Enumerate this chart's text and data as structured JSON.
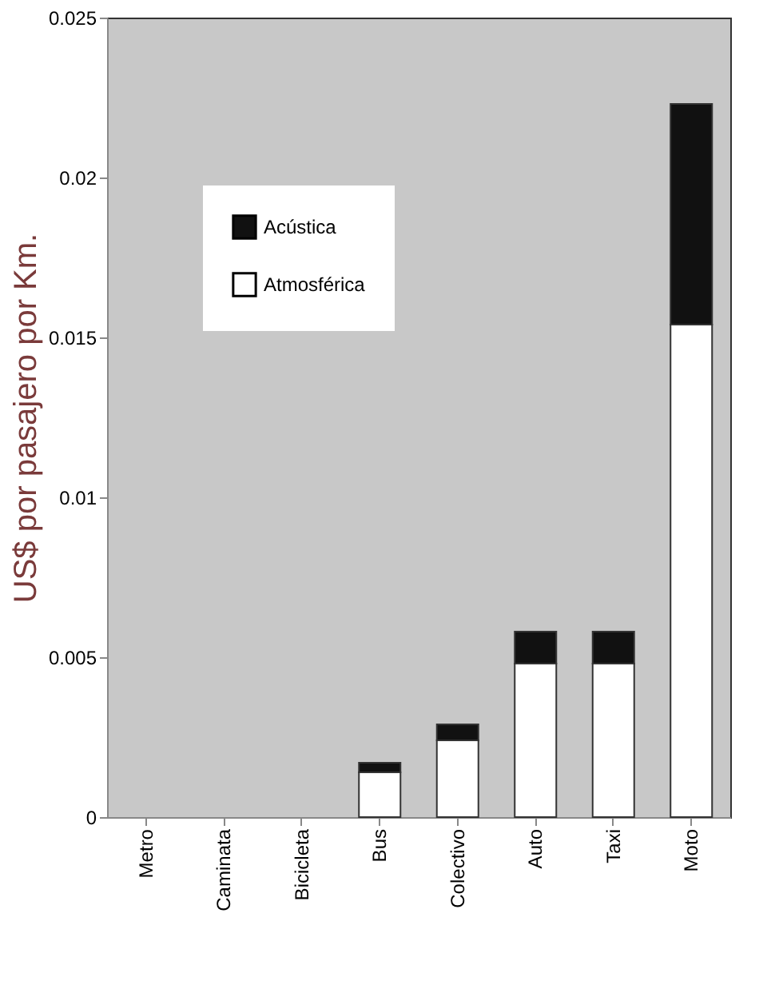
{
  "chart_data": {
    "type": "bar",
    "stacked": true,
    "ylabel": "US$ por pasajero por Km.",
    "categories": [
      "Metro",
      "Caminata",
      "Bicicleta",
      "Bus",
      "Colectivo",
      "Auto",
      "Taxi",
      "Moto"
    ],
    "series": [
      {
        "name": "Atmosférica",
        "color": "#ffffff",
        "values": [
          0,
          0,
          0,
          0.0014,
          0.0024,
          0.0048,
          0.0048,
          0.0154
        ]
      },
      {
        "name": "Acústica",
        "color": "#111111",
        "values": [
          0,
          0,
          0,
          0.0003,
          0.0005,
          0.001,
          0.001,
          0.0069
        ]
      }
    ],
    "ylim": [
      0,
      0.025
    ],
    "yticks": [
      0,
      0.005,
      0.01,
      0.015,
      0.02,
      0.025
    ],
    "grid": false,
    "legend": "top left"
  }
}
